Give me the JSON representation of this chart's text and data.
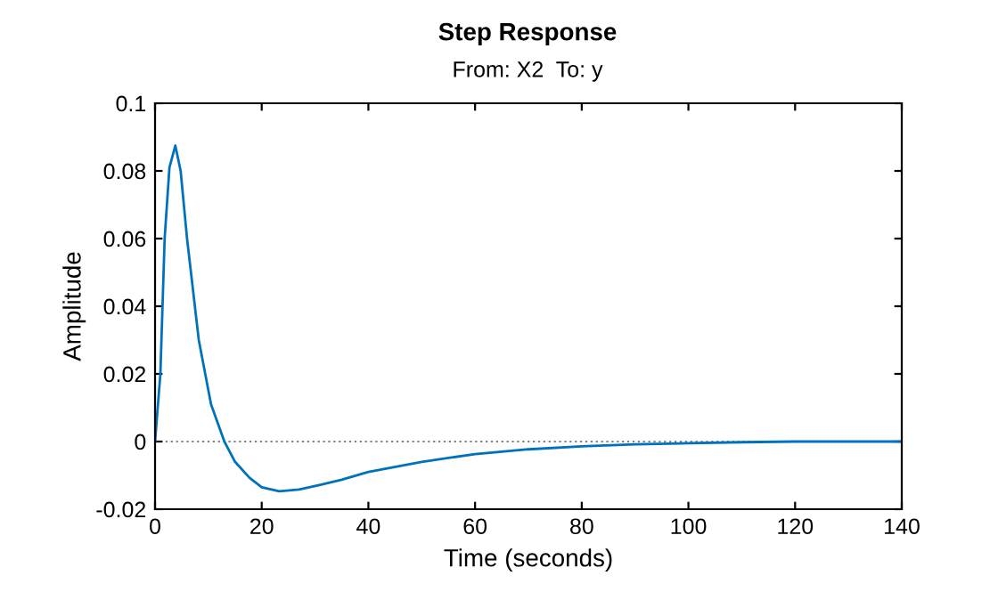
{
  "chart_data": {
    "type": "line",
    "title": "Step Response",
    "subtitle": "From: X2  To: y",
    "xlabel": "Time (seconds)",
    "ylabel": "Amplitude",
    "x": [
      0,
      1.0,
      1.8,
      2.7,
      3.8,
      4.8,
      6.0,
      8.2,
      10.5,
      13.0,
      15.0,
      17.7,
      20.0,
      23.3,
      27.0,
      31.0,
      35.0,
      40.0,
      50.0,
      60.0,
      70.0,
      80.0,
      90.0,
      100.0,
      110.0,
      120.0,
      130.0,
      140.0
    ],
    "series": [
      {
        "color": "#0072bd",
        "values": [
          0,
          0.02,
          0.06,
          0.081,
          0.0875,
          0.08,
          0.06,
          0.03,
          0.011,
          0,
          -0.006,
          -0.0107,
          -0.0135,
          -0.0147,
          -0.0142,
          -0.0128,
          -0.0113,
          -0.009,
          -0.006,
          -0.0037,
          -0.0023,
          -0.0014,
          -0.0008,
          -0.0005,
          -0.0002,
          0,
          0,
          0
        ]
      }
    ],
    "xlim": [
      0,
      140
    ],
    "xticks": [
      0,
      20,
      40,
      60,
      80,
      100,
      120,
      140
    ],
    "ylim": [
      -0.02,
      0.1
    ],
    "yticks": [
      -0.02,
      0,
      0.02,
      0.04,
      0.06,
      0.08,
      0.1
    ],
    "ref_lines": [
      {
        "axis": "y",
        "value": 0,
        "color": "#808080",
        "line_style": "dotted"
      }
    ],
    "grid": false,
    "legend": false
  }
}
